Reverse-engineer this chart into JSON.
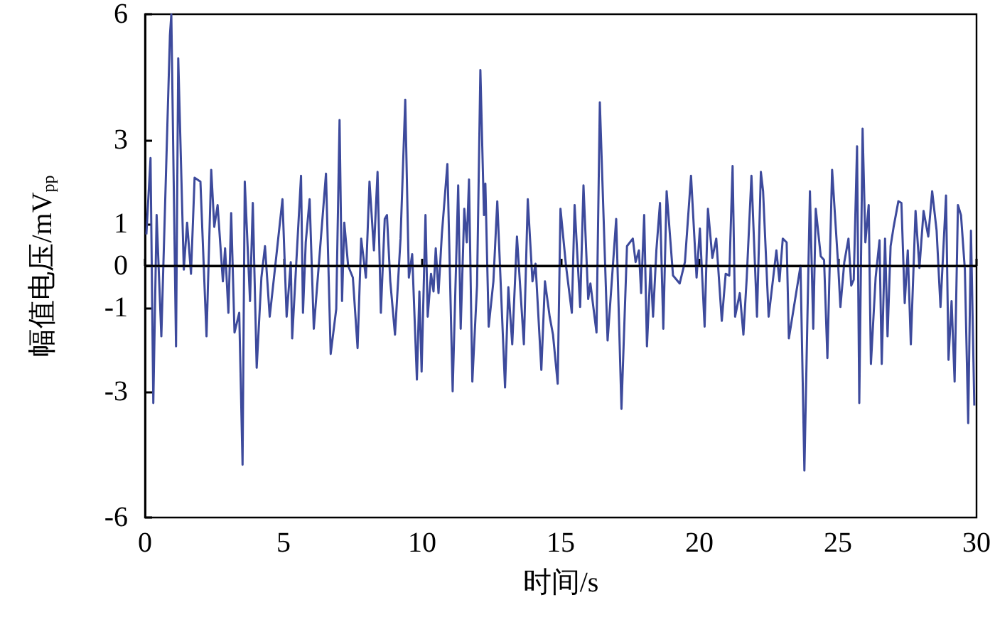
{
  "chart_data": {
    "type": "line",
    "xlabel": "时间/s",
    "ylabel": "幅值电压/mV$_{pp}$",
    "xlim": [
      0,
      30
    ],
    "xticks": [
      0,
      5,
      10,
      15,
      20,
      25,
      30
    ],
    "ylim": [
      -6,
      6
    ],
    "yticks": [
      -6,
      -3,
      -1,
      0,
      1,
      3,
      6
    ],
    "grid": false,
    "ref_lines": [
      {
        "axis": "y",
        "value": 0,
        "label": null,
        "color": "#000000"
      }
    ],
    "x": [
      0.05,
      0.2,
      0.3,
      0.42,
      0.59,
      0.9,
      0.95,
      1.12,
      1.2,
      1.4,
      1.52,
      1.66,
      1.79,
      2.0,
      2.22,
      2.39,
      2.5,
      2.62,
      2.81,
      2.89,
      3.01,
      3.11,
      3.23,
      3.4,
      3.52,
      3.6,
      3.79,
      3.89,
      4.03,
      4.2,
      4.33,
      4.5,
      4.7,
      4.96,
      5.11,
      5.26,
      5.31,
      5.63,
      5.7,
      5.8,
      5.94,
      6.09,
      6.53,
      6.7,
      6.9,
      7.02,
      7.11,
      7.19,
      7.33,
      7.5,
      7.67,
      7.8,
      7.97,
      8.1,
      8.26,
      8.39,
      8.51,
      8.65,
      8.73,
      8.85,
      9.02,
      9.22,
      9.39,
      9.52,
      9.64,
      9.81,
      9.9,
      9.98,
      10.12,
      10.2,
      10.32,
      10.41,
      10.49,
      10.59,
      10.71,
      10.91,
      11.1,
      11.3,
      11.39,
      11.52,
      11.61,
      11.69,
      11.81,
      11.98,
      12.1,
      12.23,
      12.28,
      12.4,
      12.57,
      12.71,
      12.99,
      13.11,
      13.25,
      13.42,
      13.67,
      13.81,
      13.98,
      14.09,
      14.3,
      14.43,
      14.6,
      14.72,
      14.89,
      14.99,
      15.19,
      15.4,
      15.5,
      15.7,
      15.82,
      15.99,
      16.07,
      16.29,
      16.41,
      16.69,
      17.0,
      17.19,
      17.39,
      17.6,
      17.7,
      17.82,
      17.9,
      18.01,
      18.11,
      18.24,
      18.33,
      18.45,
      18.58,
      18.7,
      18.82,
      19.05,
      19.29,
      19.48,
      19.7,
      19.9,
      20.02,
      20.19,
      20.31,
      20.47,
      20.61,
      20.81,
      20.95,
      21.08,
      21.2,
      21.29,
      21.46,
      21.59,
      21.71,
      21.88,
      22.08,
      22.22,
      22.3,
      22.5,
      22.78,
      22.89,
      23.01,
      23.15,
      23.23,
      23.65,
      23.79,
      23.99,
      24.11,
      24.2,
      24.38,
      24.5,
      24.62,
      24.79,
      25.01,
      25.09,
      25.23,
      25.38,
      25.48,
      25.57,
      25.69,
      25.77,
      25.89,
      25.99,
      26.11,
      26.19,
      26.36,
      26.5,
      26.58,
      26.7,
      26.79,
      26.9,
      27.01,
      27.18,
      27.29,
      27.41,
      27.52,
      27.63,
      27.8,
      27.94,
      28.09,
      28.26,
      28.4,
      28.56,
      28.7,
      28.9,
      28.99,
      29.1,
      29.21,
      29.33,
      29.44,
      29.58,
      29.7,
      29.8,
      29.92
    ],
    "series": [
      {
        "color": "#3d4a9c",
        "values": [
          0.75,
          2.57,
          -3.27,
          1.21,
          -1.68,
          5.5,
          6.0,
          -1.92,
          4.95,
          -0.09,
          1.03,
          -0.19,
          2.1,
          2.01,
          -1.68,
          2.29,
          0.93,
          1.45,
          -0.37,
          0.42,
          -1.12,
          1.26,
          -1.59,
          -1.12,
          -4.74,
          2.01,
          -0.84,
          1.5,
          -2.43,
          -0.28,
          0.47,
          -1.21,
          0.0,
          1.59,
          -1.21,
          0.09,
          -1.73,
          2.15,
          -1.12,
          0.56,
          1.59,
          -1.5,
          2.2,
          -2.1,
          -1.03,
          3.48,
          -0.84,
          1.03,
          0.0,
          -0.28,
          -1.96,
          0.65,
          -0.28,
          2.01,
          0.37,
          2.24,
          -1.12,
          1.12,
          1.21,
          -0.37,
          -1.64,
          0.65,
          3.96,
          -0.28,
          0.28,
          -2.71,
          -0.61,
          -2.52,
          1.21,
          -1.21,
          -0.19,
          -0.61,
          0.42,
          -0.65,
          0.75,
          2.43,
          -2.99,
          1.92,
          -1.5,
          1.36,
          0.56,
          2.06,
          -2.76,
          -0.47,
          4.67,
          1.21,
          1.96,
          -1.45,
          -0.37,
          1.54,
          -2.9,
          -0.51,
          -1.87,
          0.7,
          -1.87,
          1.59,
          -0.37,
          0.05,
          -2.48,
          -0.37,
          -1.21,
          -1.64,
          -2.81,
          1.36,
          0.0,
          -1.12,
          1.45,
          -0.98,
          1.92,
          -0.79,
          -0.42,
          -1.59,
          3.9,
          -1.78,
          1.12,
          -3.41,
          0.47,
          0.65,
          0.09,
          0.37,
          -0.65,
          1.21,
          -1.92,
          0.0,
          -1.21,
          0.37,
          1.5,
          -1.5,
          1.78,
          -0.23,
          -0.42,
          0.09,
          2.15,
          -0.28,
          0.89,
          -1.45,
          1.36,
          0.19,
          0.65,
          -1.31,
          -0.19,
          -0.23,
          2.38,
          -1.21,
          -0.65,
          -1.64,
          -0.28,
          2.15,
          -1.21,
          2.24,
          1.78,
          -1.21,
          0.37,
          -0.37,
          0.65,
          0.56,
          -1.73,
          0.0,
          -4.88,
          1.78,
          -1.5,
          1.36,
          0.23,
          0.14,
          -2.2,
          2.29,
          0.0,
          -0.98,
          0.09,
          0.65,
          -0.47,
          -0.33,
          2.85,
          -3.27,
          3.27,
          0.56,
          1.45,
          -2.34,
          -0.28,
          0.61,
          -2.34,
          0.65,
          -1.68,
          0.47,
          0.93,
          1.54,
          1.5,
          -0.89,
          0.37,
          -1.87,
          1.31,
          -0.05,
          1.31,
          0.7,
          1.78,
          0.84,
          -0.98,
          1.68,
          -2.24,
          -0.84,
          -2.76,
          1.45,
          1.21,
          -0.09,
          -3.75,
          0.84,
          -3.33
        ]
      }
    ]
  }
}
